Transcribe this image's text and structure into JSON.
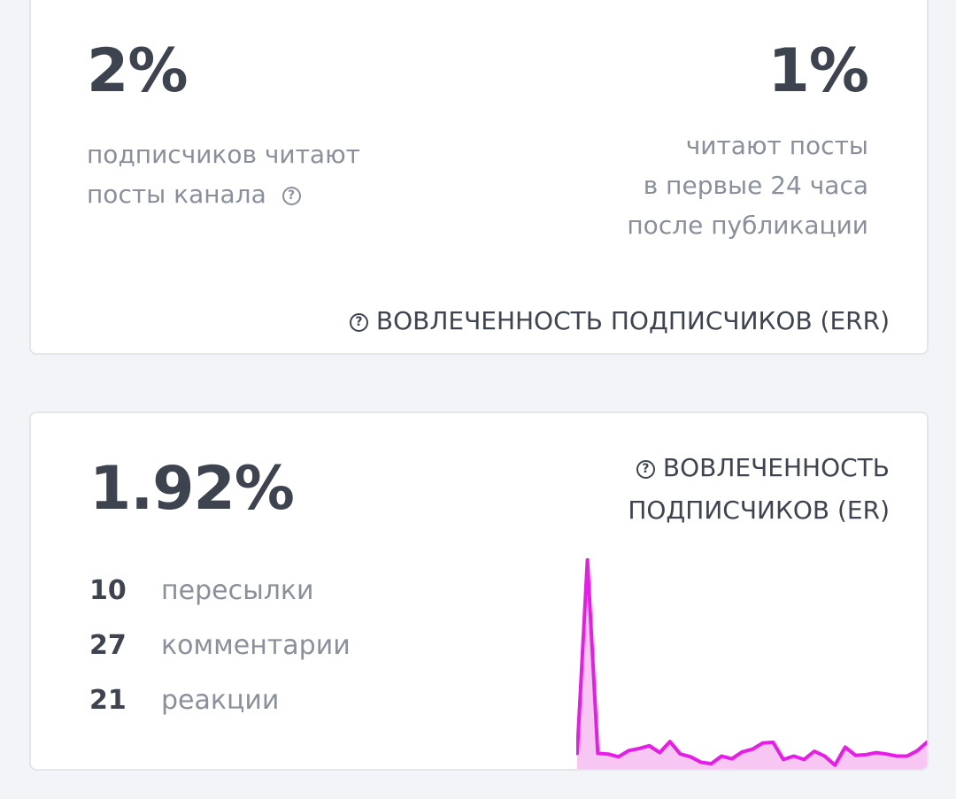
{
  "err_card": {
    "left_value": "2%",
    "left_desc_line1": "подписчиков читают",
    "left_desc_line2": "посты канала",
    "right_value": "1%",
    "right_desc_line1": "читают посты",
    "right_desc_line2": "в первые 24 часа",
    "right_desc_line3": "после публикации",
    "title": "ВОВЛЕЧЕННОСТЬ ПОДПИСЧИКОВ (ERR)"
  },
  "er_card": {
    "value": "1.92%",
    "title_line1": "ВОВЛЕЧЕННОСТЬ",
    "title_line2": "ПОДПИСЧИКОВ (ER)",
    "stats": [
      {
        "value": "10",
        "label": "пересылки"
      },
      {
        "value": "27",
        "label": "комментарии"
      },
      {
        "value": "21",
        "label": "реакции"
      }
    ]
  },
  "colors": {
    "line": "#e81be8",
    "fill": "#f7c6f3",
    "text_dark": "#3d444f",
    "text_muted": "#8a909b"
  },
  "icons": {
    "help": "question-circle-icon"
  },
  "chart_data": {
    "type": "area",
    "values": [
      1,
      29,
      1,
      0.9,
      0.5,
      1.4,
      1.7,
      2.1,
      1.1,
      2.7,
      0.9,
      0.5,
      -0.3,
      -0.5,
      0.6,
      0.2,
      1.2,
      1.6,
      2.5,
      2.6,
      0.1,
      0.6,
      0.1,
      1.3,
      0.6,
      -0.7,
      1.9,
      0.7,
      0.8,
      1.1,
      0.9,
      0.6,
      0.6,
      1.4,
      2.7
    ],
    "ylim": [
      -1,
      30
    ],
    "grid": false,
    "axes_visible": false
  }
}
